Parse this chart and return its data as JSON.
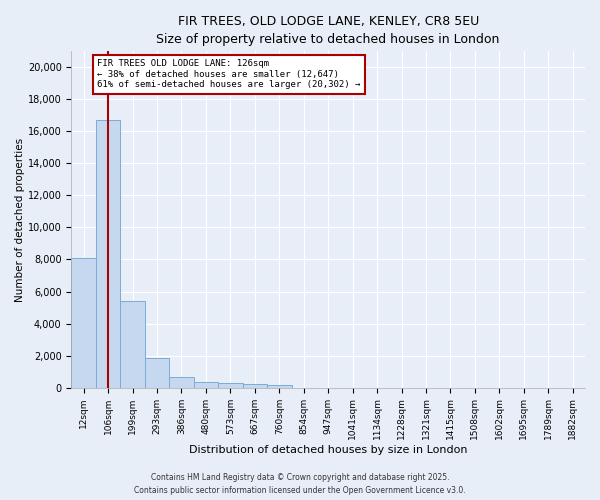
{
  "title_line1": "FIR TREES, OLD LODGE LANE, KENLEY, CR8 5EU",
  "title_line2": "Size of property relative to detached houses in London",
  "xlabel": "Distribution of detached houses by size in London",
  "ylabel": "Number of detached properties",
  "categories": [
    "12sqm",
    "106sqm",
    "199sqm",
    "293sqm",
    "386sqm",
    "480sqm",
    "573sqm",
    "667sqm",
    "760sqm",
    "854sqm",
    "947sqm",
    "1041sqm",
    "1134sqm",
    "1228sqm",
    "1321sqm",
    "1415sqm",
    "1508sqm",
    "1602sqm",
    "1695sqm",
    "1789sqm",
    "1882sqm"
  ],
  "bar_heights": [
    8100,
    16700,
    5400,
    1850,
    650,
    350,
    270,
    200,
    170,
    0,
    0,
    0,
    0,
    0,
    0,
    0,
    0,
    0,
    0,
    0,
    0
  ],
  "bar_color": "#c5d8f0",
  "bar_edge_color": "#7aadd4",
  "pct_smaller": 38,
  "n_smaller": 12647,
  "pct_larger": 61,
  "n_larger": 20302,
  "vline_x_index": 1,
  "annotation_box_color": "#aa0000",
  "ylim": [
    0,
    21000
  ],
  "yticks": [
    0,
    2000,
    4000,
    6000,
    8000,
    10000,
    12000,
    14000,
    16000,
    18000,
    20000
  ],
  "background_color": "#e8eef8",
  "grid_color": "#ffffff",
  "footer_line1": "Contains HM Land Registry data © Crown copyright and database right 2025.",
  "footer_line2": "Contains public sector information licensed under the Open Government Licence v3.0."
}
